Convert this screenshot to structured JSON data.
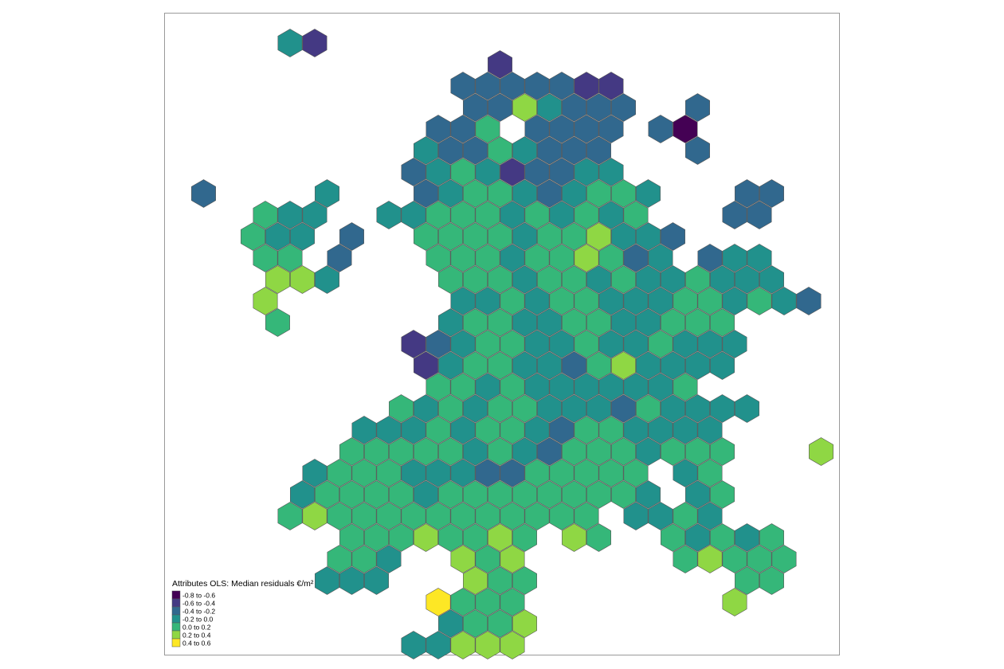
{
  "legend": {
    "title": "Attributes OLS: Median residuals €/m²",
    "classes": [
      {
        "label": "-0.8 to -0.6",
        "color": "#440154"
      },
      {
        "label": "-0.6 to -0.4",
        "color": "#443983"
      },
      {
        "label": "-0.4 to -0.2",
        "color": "#31688e"
      },
      {
        "label": "-0.2 to 0.0",
        "color": "#21918c"
      },
      {
        "label": "0.0 to 0.2",
        "color": "#35b779"
      },
      {
        "label": "0.2 to 0.4",
        "color": "#8fd744"
      },
      {
        "label": "0.4 to 0.6",
        "color": "#fde725"
      }
    ]
  }
}
